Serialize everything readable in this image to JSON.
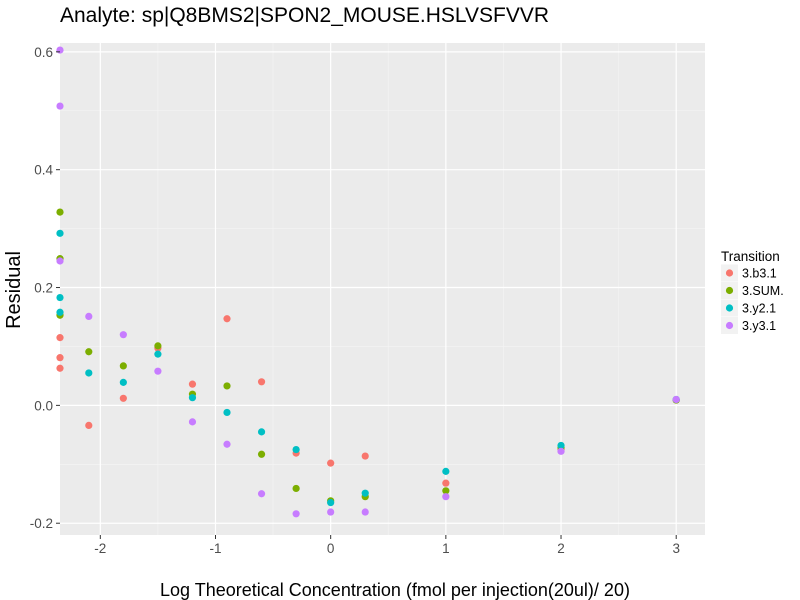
{
  "chart_data": {
    "type": "scatter",
    "title": "Analyte: sp|Q8BMS2|SPON2_MOUSE.HSLVSFVVR",
    "xlabel": "Log Theoretical Concentration (fmol per injection(20ul)/ 20)",
    "ylabel": "Residual",
    "xlim": [
      -2.35,
      3.25
    ],
    "ylim": [
      -0.22,
      0.615
    ],
    "x_ticks": [
      -2,
      -1,
      0,
      1,
      2,
      3
    ],
    "x_tick_labels": [
      "-2",
      "-1",
      "0",
      "1",
      "2",
      "3"
    ],
    "y_ticks": [
      -0.2,
      0.0,
      0.2,
      0.4,
      0.6
    ],
    "y_tick_labels": [
      "-0.2",
      "0.0",
      "0.2",
      "0.4",
      "0.6"
    ],
    "grid": true,
    "legend": {
      "title": "Transition",
      "position": "right"
    },
    "series": [
      {
        "name": "3.b3.1",
        "color": "#F8766D",
        "points": [
          [
            -2.35,
            0.115
          ],
          [
            -2.35,
            0.081
          ],
          [
            -2.35,
            0.063
          ],
          [
            -2.1,
            -0.034
          ],
          [
            -1.8,
            0.012
          ],
          [
            -1.5,
            0.097
          ],
          [
            -1.2,
            0.036
          ],
          [
            -0.9,
            0.147
          ],
          [
            -0.6,
            0.04
          ],
          [
            -0.3,
            -0.081
          ],
          [
            0,
            -0.098
          ],
          [
            0.3,
            -0.086
          ],
          [
            1,
            -0.132
          ],
          [
            2,
            -0.075
          ],
          [
            3,
            0.009
          ]
        ]
      },
      {
        "name": "3.SUM.",
        "color": "#7CAE00",
        "points": [
          [
            -2.35,
            0.328
          ],
          [
            -2.35,
            0.249
          ],
          [
            -2.35,
            0.153
          ],
          [
            -2.1,
            0.091
          ],
          [
            -1.8,
            0.067
          ],
          [
            -1.5,
            0.101
          ],
          [
            -1.2,
            0.019
          ],
          [
            -0.9,
            0.033
          ],
          [
            -0.6,
            -0.083
          ],
          [
            -0.3,
            -0.141
          ],
          [
            0,
            -0.162
          ],
          [
            0.3,
            -0.155
          ],
          [
            1,
            -0.145
          ],
          [
            2,
            -0.072
          ],
          [
            3,
            0.009
          ]
        ]
      },
      {
        "name": "3.y2.1",
        "color": "#00BFC4",
        "points": [
          [
            -2.35,
            0.292
          ],
          [
            -2.35,
            0.183
          ],
          [
            -2.35,
            0.158
          ],
          [
            -2.1,
            0.055
          ],
          [
            -1.8,
            0.039
          ],
          [
            -1.5,
            0.087
          ],
          [
            -1.2,
            0.013
          ],
          [
            -0.9,
            -0.012
          ],
          [
            -0.6,
            -0.045
          ],
          [
            -0.3,
            -0.075
          ],
          [
            0,
            -0.165
          ],
          [
            0.3,
            -0.149
          ],
          [
            1,
            -0.112
          ],
          [
            2,
            -0.068
          ],
          [
            3,
            0.01
          ]
        ]
      },
      {
        "name": "3.y3.1",
        "color": "#C77CFF",
        "points": [
          [
            -2.35,
            0.603
          ],
          [
            -2.35,
            0.508
          ],
          [
            -2.35,
            0.245
          ],
          [
            -2.1,
            0.151
          ],
          [
            -1.8,
            0.12
          ],
          [
            -1.5,
            0.058
          ],
          [
            -1.2,
            -0.028
          ],
          [
            -0.9,
            -0.066
          ],
          [
            -0.6,
            -0.15
          ],
          [
            -0.3,
            -0.184
          ],
          [
            0,
            -0.181
          ],
          [
            0.3,
            -0.181
          ],
          [
            1,
            -0.155
          ],
          [
            2,
            -0.078
          ],
          [
            3,
            0.01
          ]
        ]
      }
    ]
  }
}
